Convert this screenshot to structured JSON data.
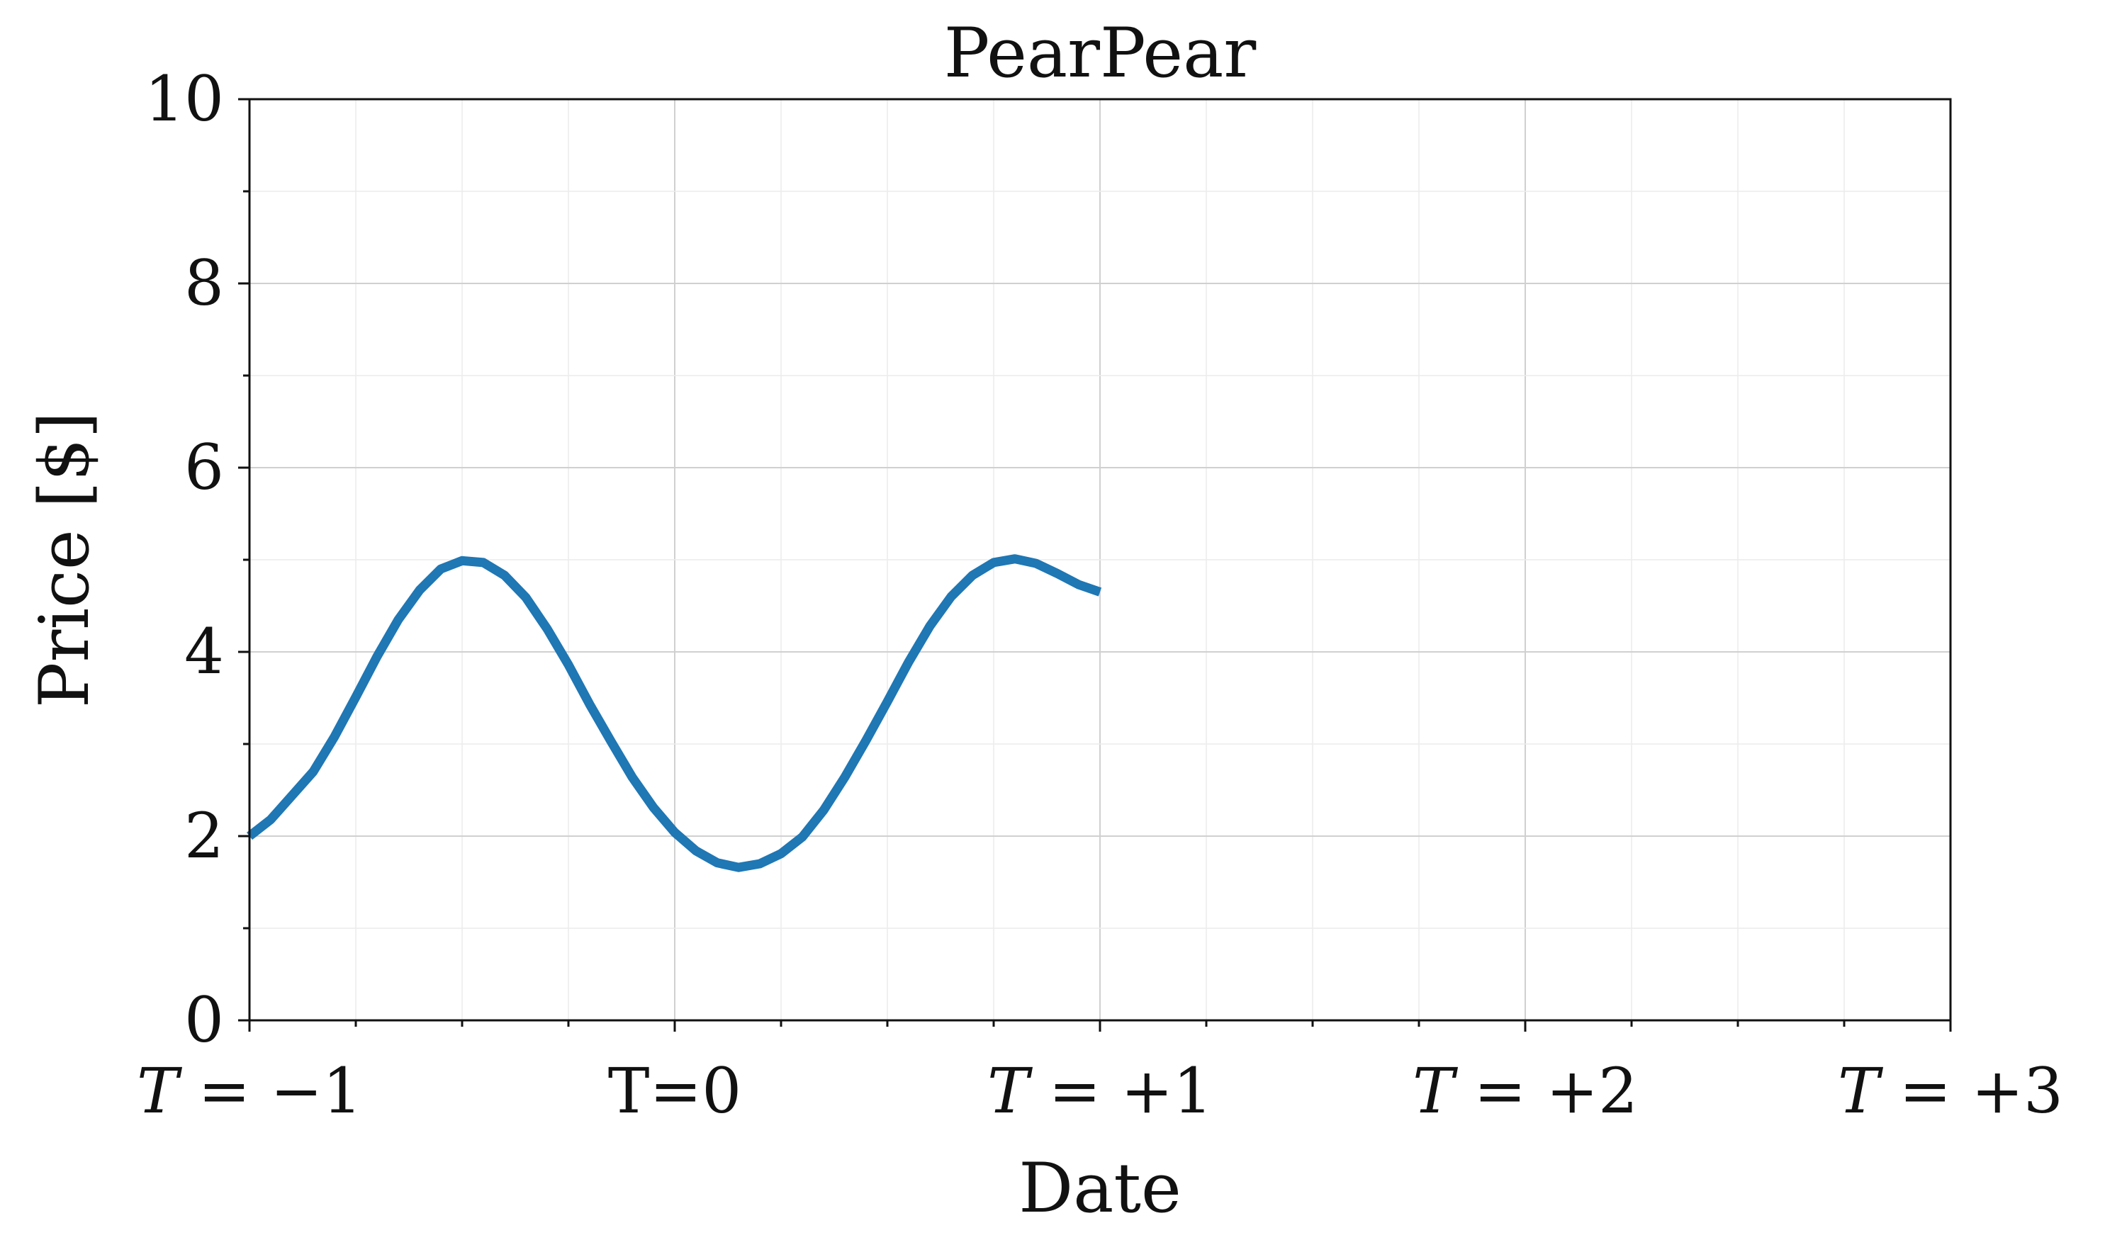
{
  "chart_data": {
    "type": "line",
    "title": "PearPear",
    "xlabel": "Date",
    "ylabel": "Price [$]",
    "xlim": [
      -1,
      3
    ],
    "ylim": [
      0,
      10
    ],
    "x_ticks": [
      {
        "value": -1,
        "label": "T = −1",
        "italic_t": true
      },
      {
        "value": 0,
        "label": "T=0",
        "italic_t": false
      },
      {
        "value": 1,
        "label": "T = +1",
        "italic_t": true
      },
      {
        "value": 2,
        "label": "T = +2",
        "italic_t": true
      },
      {
        "value": 3,
        "label": "T = +3",
        "italic_t": true
      }
    ],
    "y_ticks": [
      {
        "value": 0,
        "label": "0"
      },
      {
        "value": 2,
        "label": "2"
      },
      {
        "value": 4,
        "label": "4"
      },
      {
        "value": 6,
        "label": "6"
      },
      {
        "value": 8,
        "label": "8"
      },
      {
        "value": 10,
        "label": "10"
      }
    ],
    "grid": true,
    "colors": {
      "series": "#1f77b4",
      "axis": "#111111",
      "grid_major": "#d0d0d0",
      "grid_minor": "#ececec"
    },
    "series": [
      {
        "x": [
          -1.0,
          -0.95,
          -0.9,
          -0.85,
          -0.8,
          -0.75,
          -0.7,
          -0.65,
          -0.6,
          -0.55,
          -0.5,
          -0.45,
          -0.4,
          -0.35,
          -0.3,
          -0.25,
          -0.2,
          -0.15,
          -0.1,
          -0.05,
          0.0,
          0.05,
          0.1,
          0.15,
          0.2,
          0.25,
          0.3,
          0.35,
          0.4,
          0.45,
          0.5,
          0.55,
          0.6,
          0.65,
          0.7,
          0.75,
          0.8,
          0.85,
          0.9,
          0.95,
          1.0
        ],
        "y": [
          2.0,
          2.18,
          2.44,
          2.7,
          3.08,
          3.51,
          3.95,
          4.35,
          4.67,
          4.9,
          4.99,
          4.97,
          4.83,
          4.59,
          4.25,
          3.86,
          3.43,
          3.03,
          2.64,
          2.31,
          2.04,
          1.84,
          1.71,
          1.66,
          1.7,
          1.81,
          1.99,
          2.28,
          2.64,
          3.04,
          3.46,
          3.89,
          4.28,
          4.6,
          4.83,
          4.97,
          5.01,
          4.96,
          4.85,
          4.73,
          4.65
        ]
      }
    ]
  }
}
